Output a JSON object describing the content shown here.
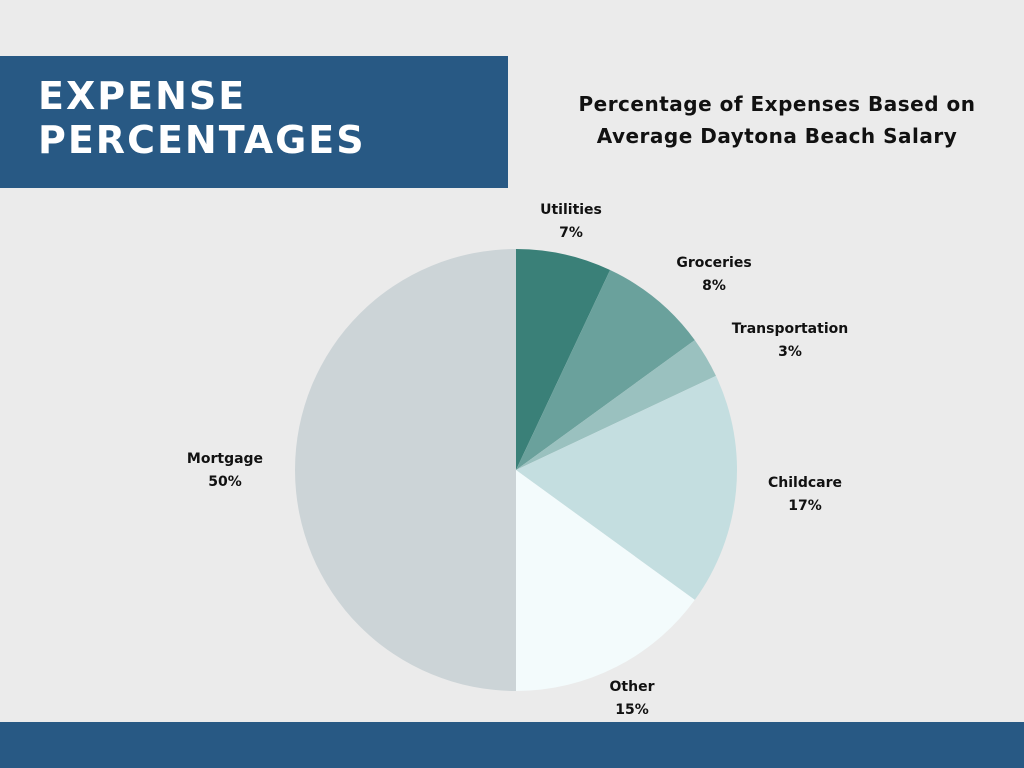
{
  "header": {
    "line1": "EXPENSE",
    "line2": "PERCENTAGES"
  },
  "chart_data": {
    "type": "pie",
    "title_line1": "Percentage of Expenses Based on",
    "title_line2": "Average Daytona Beach Salary",
    "slices": [
      {
        "label": "Utilities",
        "value": 7,
        "value_label": "7%",
        "color": "#3a8078"
      },
      {
        "label": "Groceries",
        "value": 8,
        "value_label": "8%",
        "color": "#6aa19c"
      },
      {
        "label": "Transportation",
        "value": 3,
        "value_label": "3%",
        "color": "#9ac1bf"
      },
      {
        "label": "Childcare",
        "value": 17,
        "value_label": "17%",
        "color": "#c4dee0"
      },
      {
        "label": "Other",
        "value": 15,
        "value_label": "15%",
        "color": "#f3fbfc"
      },
      {
        "label": "Mortgage",
        "value": 50,
        "value_label": "50%",
        "color": "#ccd4d7"
      }
    ],
    "start": "top",
    "direction": "clockwise"
  },
  "colors": {
    "banner": "#285984",
    "background": "#ebebeb"
  }
}
